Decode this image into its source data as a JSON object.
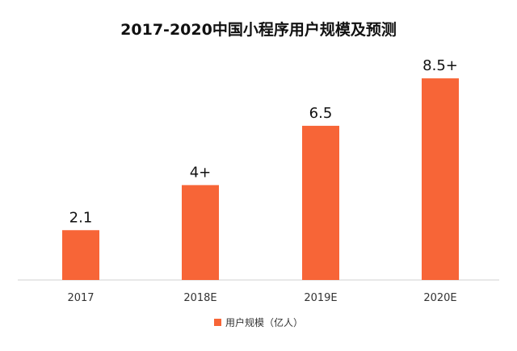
{
  "chart_data": {
    "type": "bar",
    "title": "2017-2020中国小程序用户规模及预测",
    "categories": [
      "2017",
      "2018E",
      "2019E",
      "2020E"
    ],
    "values": [
      2.1,
      4,
      6.5,
      8.5
    ],
    "data_labels": [
      "2.1",
      "4+",
      "6.5",
      "8.5+"
    ],
    "series": [
      {
        "name": "用户规模（亿人）",
        "values": [
          2.1,
          4,
          6.5,
          8.5
        ]
      }
    ],
    "legend": "bottom",
    "grid": false,
    "colors": {
      "bar": "#f76537",
      "axis": "#d0d0d0",
      "text": "#111111"
    }
  }
}
